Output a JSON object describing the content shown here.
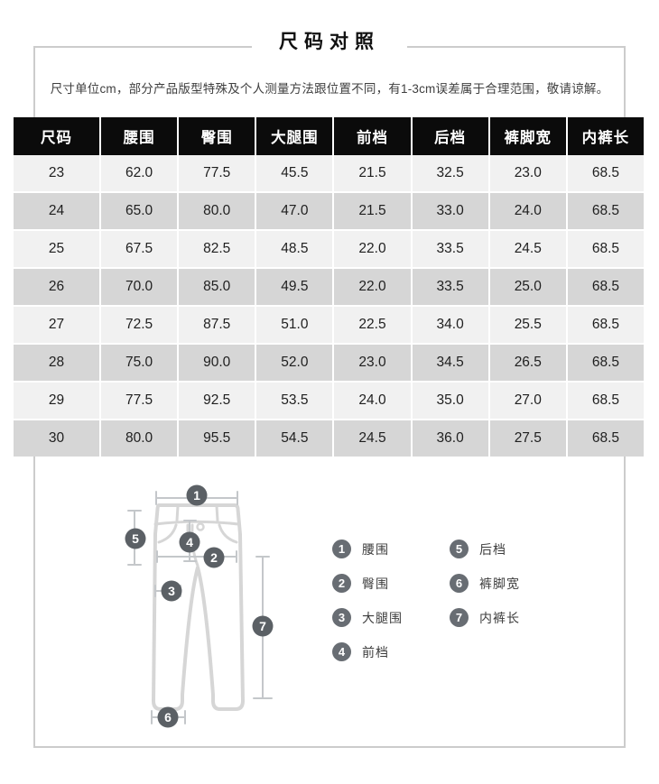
{
  "title": "尺码对照",
  "note": "尺寸单位cm，部分产品版型特殊及个人测量方法跟位置不同，有1-3cm误差属于合理范围，敬请谅解。",
  "table": {
    "headers": [
      "尺码",
      "腰围",
      "臀围",
      "大腿围",
      "前档",
      "后档",
      "裤脚宽",
      "内裤长"
    ],
    "rows": [
      [
        "23",
        "62.0",
        "77.5",
        "45.5",
        "21.5",
        "32.5",
        "23.0",
        "68.5"
      ],
      [
        "24",
        "65.0",
        "80.0",
        "47.0",
        "21.5",
        "33.0",
        "24.0",
        "68.5"
      ],
      [
        "25",
        "67.5",
        "82.5",
        "48.5",
        "22.0",
        "33.5",
        "24.5",
        "68.5"
      ],
      [
        "26",
        "70.0",
        "85.0",
        "49.5",
        "22.0",
        "33.5",
        "25.0",
        "68.5"
      ],
      [
        "27",
        "72.5",
        "87.5",
        "51.0",
        "22.5",
        "34.0",
        "25.5",
        "68.5"
      ],
      [
        "28",
        "75.0",
        "90.0",
        "52.0",
        "23.0",
        "34.5",
        "26.5",
        "68.5"
      ],
      [
        "29",
        "77.5",
        "92.5",
        "53.5",
        "24.0",
        "35.0",
        "27.0",
        "68.5"
      ],
      [
        "30",
        "80.0",
        "95.5",
        "54.5",
        "24.5",
        "36.0",
        "27.5",
        "68.5"
      ]
    ]
  },
  "legend": [
    {
      "num": "1",
      "label": "腰围"
    },
    {
      "num": "2",
      "label": "臀围"
    },
    {
      "num": "3",
      "label": "大腿围"
    },
    {
      "num": "4",
      "label": "前档"
    },
    {
      "num": "5",
      "label": "后档"
    },
    {
      "num": "6",
      "label": "裤脚宽"
    },
    {
      "num": "7",
      "label": "内裤长"
    }
  ],
  "colors": {
    "text": "#222222",
    "header_bg": "#0b0b0b",
    "header_text": "#ffffff",
    "row_odd": "#f1f1f1",
    "row_even": "#d6d6d6",
    "border": "#cccccc",
    "badge": "#5b6065",
    "legend_badge": "#686d73",
    "pants": "#d6d6d6",
    "measure": "#c4c7ca"
  }
}
